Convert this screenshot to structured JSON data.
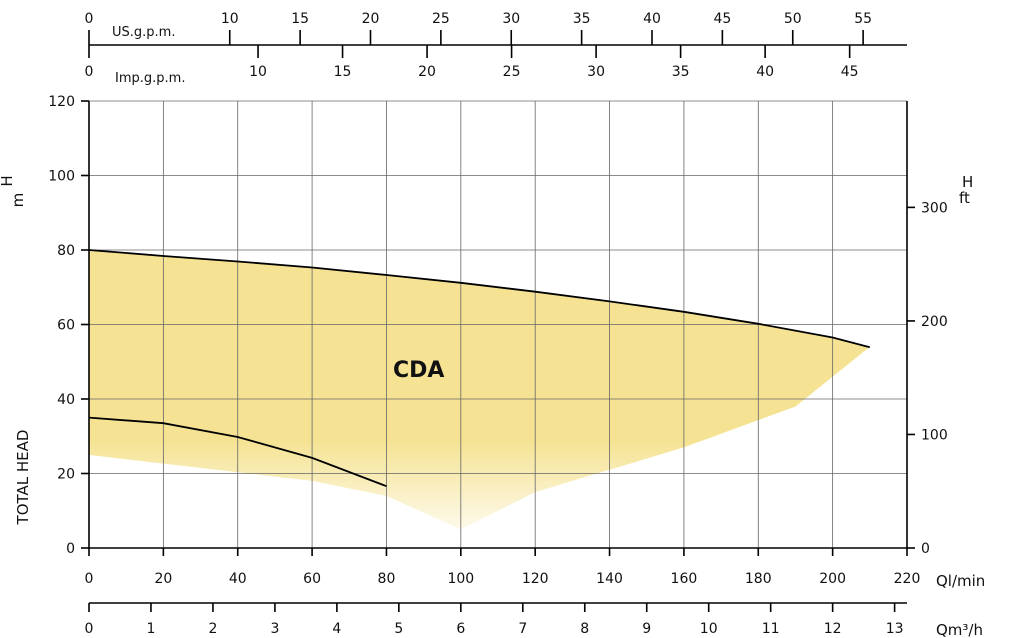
{
  "chart_data": {
    "type": "area",
    "series_label": "CDA",
    "x_axis": {
      "unit": "Ql/min",
      "range": [
        0,
        220
      ],
      "ticks": [
        0,
        20,
        40,
        60,
        80,
        100,
        120,
        140,
        160,
        180,
        200,
        220
      ],
      "tick_labels": [
        "0",
        "20",
        "40",
        "60",
        "80",
        "100",
        "120",
        "140",
        "160",
        "180",
        "200",
        "220"
      ]
    },
    "y_axis_left": {
      "unit": "m",
      "symbol": "H",
      "title": "TOTAL HEAD",
      "range": [
        0,
        120
      ],
      "ticks": [
        0,
        20,
        40,
        60,
        80,
        100,
        120
      ],
      "tick_labels": [
        "0",
        "20",
        "40",
        "60",
        "80",
        "100",
        "120"
      ]
    },
    "y_axis_right": {
      "unit": "ft",
      "symbol": "H",
      "ticks_ft": [
        0,
        100,
        200,
        300
      ],
      "tick_labels": [
        "0",
        "100",
        "200",
        "300"
      ]
    },
    "top_axis_us": {
      "unit": "US.g.p.m.",
      "ticks": [
        0,
        10,
        15,
        20,
        25,
        30,
        35,
        40,
        45,
        50,
        55
      ],
      "tick_labels": [
        "0",
        "10",
        "15",
        "20",
        "25",
        "30",
        "35",
        "40",
        "45",
        "50",
        "55"
      ]
    },
    "top_axis_imp": {
      "unit": "Imp.g.p.m.",
      "ticks": [
        0,
        10,
        15,
        20,
        25,
        30,
        35,
        40,
        45
      ],
      "tick_labels": [
        "0",
        "10",
        "15",
        "20",
        "25",
        "30",
        "35",
        "40",
        "45"
      ]
    },
    "bottom_axis_m3h": {
      "unit": "Qm³/h",
      "ticks": [
        0,
        1,
        2,
        3,
        4,
        5,
        6,
        7,
        8,
        9,
        10,
        11,
        12,
        13
      ],
      "tick_labels": [
        "0",
        "1",
        "2",
        "3",
        "4",
        "5",
        "6",
        "7",
        "8",
        "9",
        "10",
        "11",
        "12",
        "13"
      ]
    },
    "upper_curve": {
      "x": [
        0,
        20,
        40,
        60,
        80,
        100,
        120,
        140,
        160,
        180,
        200,
        210
      ],
      "y": [
        80,
        78.4,
        76.9,
        75.3,
        73.3,
        71.2,
        68.8,
        66.2,
        63.4,
        60.2,
        56.5,
        53.9
      ]
    },
    "lower_curve": {
      "x": [
        0,
        20,
        40,
        60,
        80
      ],
      "y": [
        35,
        33.5,
        29.8,
        24.2,
        16.6
      ]
    },
    "area_lower_boundary": {
      "x": [
        0,
        60,
        80,
        100,
        110,
        120,
        140,
        160,
        190,
        210
      ],
      "y": [
        25,
        18,
        14,
        5,
        10,
        15,
        21,
        27,
        38,
        54
      ]
    },
    "grid": true,
    "fill_color": "#f5e393"
  }
}
